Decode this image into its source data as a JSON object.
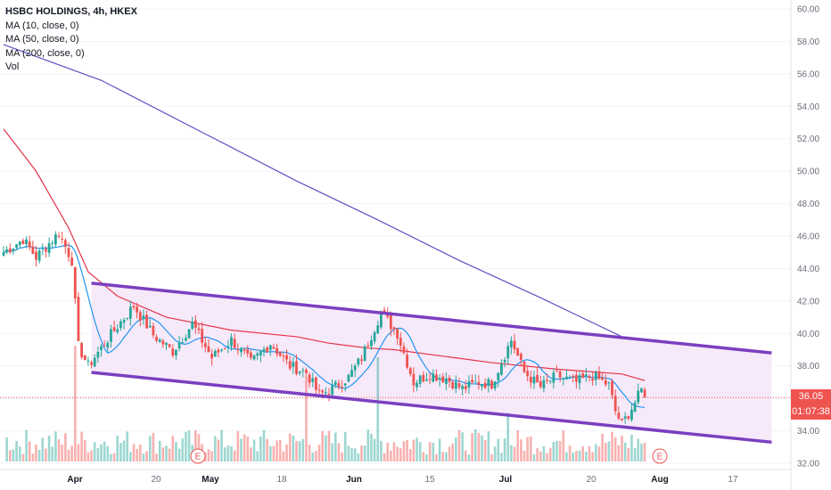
{
  "legend": {
    "title": "HSBC HOLDINGS, 4h, HKEX",
    "ma10": "MA (10, close, 0)",
    "ma50": "MA (50, close, 0)",
    "ma200": "MA (200, close, 0)",
    "vol": "Vol"
  },
  "price_axis": {
    "ticks": [
      "60.00",
      "58.00",
      "56.00",
      "54.00",
      "52.00",
      "50.00",
      "48.00",
      "46.00",
      "44.00",
      "42.00",
      "40.00",
      "38.00",
      "36.00",
      "34.00",
      "32.00"
    ],
    "current_price": "36.05",
    "countdown": "01:07:38"
  },
  "time_axis": {
    "ticks": [
      {
        "label": "Apr",
        "bold": true
      },
      {
        "label": "20",
        "bold": false
      },
      {
        "label": "May",
        "bold": true
      },
      {
        "label": "18",
        "bold": false
      },
      {
        "label": "Jun",
        "bold": true
      },
      {
        "label": "15",
        "bold": false
      },
      {
        "label": "Jul",
        "bold": true
      },
      {
        "label": "20",
        "bold": false
      },
      {
        "label": "Aug",
        "bold": true
      },
      {
        "label": "17",
        "bold": false
      }
    ]
  },
  "earnings_markers": [
    "E",
    "E"
  ],
  "colors": {
    "up": "#26a69a",
    "down": "#ef5350",
    "ma10": "#2196f3",
    "ma50": "#e5344a",
    "ma200": "#5c52c4",
    "channel": "#7b3fc0",
    "channel_fill": "#f6e9f9",
    "price_line": "#ef5350"
  },
  "chart_data": {
    "type": "candlestick",
    "title": "HSBC HOLDINGS, 4h, HKEX",
    "ylim": [
      31.5,
      60.5
    ],
    "x_ticks": [
      "Apr",
      "20",
      "May",
      "18",
      "Jun",
      "15",
      "Jul",
      "20",
      "Aug",
      "17"
    ],
    "last_close": 36.05,
    "price_anchors": [
      {
        "bar": 0,
        "price": 45.0
      },
      {
        "bar": 6,
        "price": 45.8
      },
      {
        "bar": 10,
        "price": 44.7
      },
      {
        "bar": 17,
        "price": 46.2
      },
      {
        "bar": 21,
        "price": 44.5
      },
      {
        "bar": 23,
        "price": 39.2
      },
      {
        "bar": 26,
        "price": 38.0
      },
      {
        "bar": 34,
        "price": 40.2
      },
      {
        "bar": 40,
        "price": 41.7
      },
      {
        "bar": 46,
        "price": 39.9
      },
      {
        "bar": 52,
        "price": 38.9
      },
      {
        "bar": 58,
        "price": 40.6
      },
      {
        "bar": 64,
        "price": 38.5
      },
      {
        "bar": 70,
        "price": 39.6
      },
      {
        "bar": 76,
        "price": 38.2
      },
      {
        "bar": 82,
        "price": 39.4
      },
      {
        "bar": 88,
        "price": 38.0
      },
      {
        "bar": 93,
        "price": 37.6
      },
      {
        "bar": 97,
        "price": 36.2
      },
      {
        "bar": 101,
        "price": 36.6
      },
      {
        "bar": 106,
        "price": 37.3
      },
      {
        "bar": 110,
        "price": 38.5
      },
      {
        "bar": 116,
        "price": 41.3
      },
      {
        "bar": 121,
        "price": 40.0
      },
      {
        "bar": 126,
        "price": 37.0
      },
      {
        "bar": 131,
        "price": 37.5
      },
      {
        "bar": 136,
        "price": 37.2
      },
      {
        "bar": 141,
        "price": 36.6
      },
      {
        "bar": 146,
        "price": 37.0
      },
      {
        "bar": 150,
        "price": 36.9
      },
      {
        "bar": 156,
        "price": 39.6
      },
      {
        "bar": 160,
        "price": 37.6
      },
      {
        "bar": 165,
        "price": 36.7
      },
      {
        "bar": 170,
        "price": 37.4
      },
      {
        "bar": 176,
        "price": 37.0
      },
      {
        "bar": 181,
        "price": 37.4
      },
      {
        "bar": 186,
        "price": 36.8
      },
      {
        "bar": 188,
        "price": 35.2
      },
      {
        "bar": 190,
        "price": 34.4
      },
      {
        "bar": 193,
        "price": 35.4
      },
      {
        "bar": 196,
        "price": 36.5
      },
      {
        "bar": 197,
        "price": 36.05
      }
    ],
    "ma200_points": [
      [
        0,
        57.8
      ],
      [
        30,
        55.6
      ],
      [
        60,
        52.5
      ],
      [
        90,
        49.4
      ],
      [
        115,
        47.0
      ],
      [
        140,
        44.5
      ],
      [
        165,
        42.2
      ],
      [
        190,
        39.8
      ]
    ],
    "ma50_points": [
      [
        0,
        52.6
      ],
      [
        10,
        50.0
      ],
      [
        20,
        46.5
      ],
      [
        26,
        43.8
      ],
      [
        35,
        42.3
      ],
      [
        50,
        41.0
      ],
      [
        70,
        40.2
      ],
      [
        90,
        39.8
      ],
      [
        100,
        39.4
      ],
      [
        112,
        39.1
      ],
      [
        120,
        39.0
      ],
      [
        135,
        38.6
      ],
      [
        150,
        38.2
      ],
      [
        170,
        37.8
      ],
      [
        190,
        37.5
      ],
      [
        197,
        37.1
      ]
    ],
    "channel": {
      "upper": [
        {
          "bar": 27,
          "price": 43.1
        },
        {
          "bar": 236,
          "price": 38.8
        }
      ],
      "lower": [
        {
          "bar": 27,
          "price": 37.6
        },
        {
          "bar": 236,
          "price": 33.3
        }
      ]
    },
    "volume": {
      "spikes": [
        {
          "bar": 22,
          "value": 1.0
        },
        {
          "bar": 93,
          "value": 0.75
        },
        {
          "bar": 115,
          "value": 0.9
        },
        {
          "bar": 155,
          "value": 0.42
        }
      ]
    }
  }
}
